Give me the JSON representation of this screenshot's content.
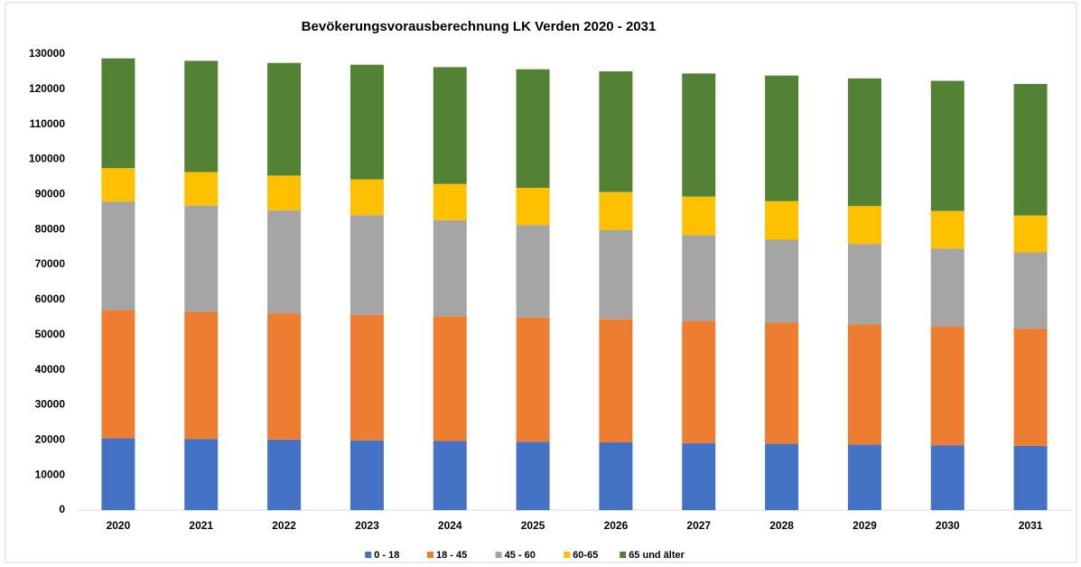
{
  "chart_data": {
    "type": "stacked_bar",
    "title": "Bevökerungsvorausberechnung LK Verden 2020 - 2031",
    "categories": [
      "2020",
      "2021",
      "2022",
      "2023",
      "2024",
      "2025",
      "2026",
      "2027",
      "2028",
      "2029",
      "2030",
      "2031"
    ],
    "series": [
      {
        "name": "0 - 18",
        "color": "#4472c4",
        "values": [
          20500,
          20300,
          20100,
          19900,
          19700,
          19500,
          19300,
          19100,
          18900,
          18700,
          18500,
          18300
        ]
      },
      {
        "name": "18 - 45",
        "color": "#ed7d31",
        "values": [
          36500,
          36200,
          36000,
          35800,
          35600,
          35400,
          35200,
          34900,
          34600,
          34300,
          33900,
          33500
        ]
      },
      {
        "name": "45 - 60",
        "color": "#a5a5a5",
        "values": [
          31000,
          30300,
          29400,
          28400,
          27400,
          26400,
          25400,
          24400,
          23600,
          22900,
          22200,
          21700
        ]
      },
      {
        "name": "60-65",
        "color": "#ffc000",
        "values": [
          9500,
          9600,
          9900,
          10200,
          10300,
          10600,
          10800,
          11000,
          11000,
          10800,
          10700,
          10500
        ]
      },
      {
        "name": "65 und älter",
        "color": "#548235",
        "values": [
          31300,
          31700,
          32100,
          32700,
          33300,
          33800,
          34400,
          35100,
          35800,
          36400,
          37100,
          37500
        ]
      }
    ],
    "ylim": [
      0,
      130000
    ],
    "yticks": [
      0,
      10000,
      20000,
      30000,
      40000,
      50000,
      60000,
      70000,
      80000,
      90000,
      100000,
      110000,
      120000,
      130000
    ],
    "legend": "bottom"
  }
}
